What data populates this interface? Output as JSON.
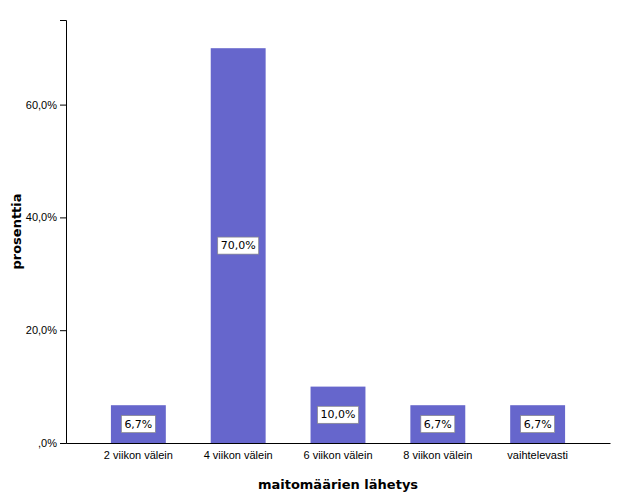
{
  "chart_data": {
    "type": "bar",
    "xlabel": "maitomäärien lähetys",
    "ylabel": "prosenttia",
    "categories": [
      "2 viikon välein",
      "4 viikon välein",
      "6 viikon välein",
      "8 viikon välein",
      "vaihtelevasti"
    ],
    "values": [
      6.7,
      70.0,
      10.0,
      6.7,
      6.7
    ],
    "value_labels": [
      "6,7%",
      "70,0%",
      "10,0%",
      "6,7%",
      "6,7%"
    ],
    "data_labels": true,
    "color": "#6666cc",
    "ylim": [
      0,
      75
    ],
    "yticks": [
      {
        "value": 0,
        "label": ",0%"
      },
      {
        "value": 20.0,
        "label": "20,0%"
      },
      {
        "value": 40.0,
        "label": "40,0%"
      },
      {
        "value": 60.0,
        "label": "60,0%"
      }
    ],
    "grid": false
  }
}
